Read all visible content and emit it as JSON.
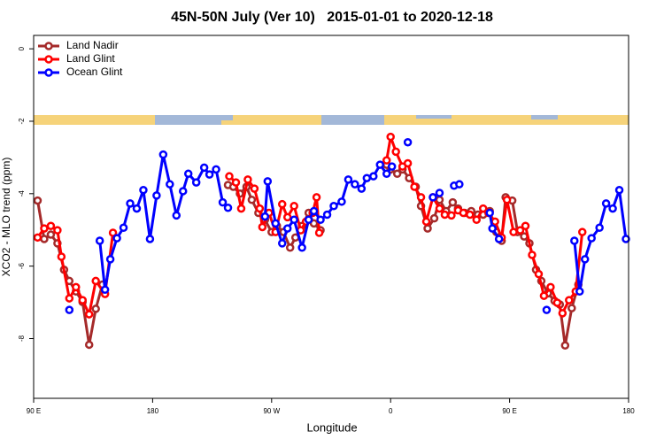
{
  "chart_data": {
    "type": "line",
    "title": "45N-50N July (Ver 10)   2015-01-01 to 2020-12-18",
    "xlabel": "Longitude",
    "ylabel": "XCO2 - MLO trend (ppm)",
    "xlim": [
      90,
      540
    ],
    "xticks": [
      {
        "value": 90,
        "label": "90 E"
      },
      {
        "value": 180,
        "label": "180"
      },
      {
        "value": 270,
        "label": "90 W"
      },
      {
        "value": 360,
        "label": "0"
      },
      {
        "value": 450,
        "label": "90 E"
      },
      {
        "value": 540,
        "label": "180"
      }
    ],
    "ylim": [
      -9.65,
      0.37
    ],
    "yticks": [
      -8,
      -6,
      -4,
      -2,
      0
    ],
    "legend": "upper left",
    "series": [
      {
        "name": "Land Nadir",
        "color": "#a52a2a",
        "x": [
          93,
          98,
          103,
          108,
          113,
          117,
          122,
          127,
          132,
          137,
          142,
          null,
          237,
          241,
          246,
          251,
          255,
          260,
          265,
          270,
          274,
          279,
          284,
          288,
          293,
          298,
          302,
          307,
          null,
          357,
          360,
          365,
          369,
          374,
          379,
          383,
          388,
          393,
          397,
          402,
          407,
          411,
          416,
          421,
          426,
          430,
          435,
          440,
          444,
          447,
          452,
          456,
          461,
          465,
          470,
          474,
          479,
          484,
          488,
          492,
          497,
          502
        ],
        "values": [
          -4.19,
          -5.25,
          -5.13,
          -5.37,
          -6.1,
          -6.41,
          -6.7,
          -6.99,
          -8.17,
          -7.18,
          -6.51,
          null,
          -3.76,
          -3.81,
          -4.0,
          -3.81,
          -4.17,
          -4.53,
          -4.72,
          -5.06,
          -4.89,
          -5.06,
          -5.49,
          -5.21,
          -4.89,
          -4.53,
          -4.82,
          -5.01,
          null,
          -3.2,
          -3.33,
          -3.45,
          -3.33,
          -3.57,
          -3.81,
          -4.34,
          -4.96,
          -4.68,
          -4.17,
          -4.48,
          -4.24,
          -4.41,
          -4.53,
          -4.48,
          -4.58,
          -4.58,
          -4.48,
          -5.06,
          -5.3,
          -4.1,
          -4.19,
          -5.06,
          -5.18,
          -5.37,
          -6.1,
          -6.41,
          -6.75,
          -6.96,
          -7.06,
          -8.19,
          -7.16,
          -6.51
        ]
      },
      {
        "name": "Land Glint",
        "color": "#ff0000",
        "x": [
          93,
          98,
          103,
          108,
          111,
          117,
          122,
          127,
          132,
          137,
          144,
          150,
          null,
          238,
          243,
          247,
          252,
          257,
          261,
          263,
          268,
          273,
          278,
          282,
          287,
          292,
          296,
          301,
          304,
          306,
          null,
          357,
          360,
          364,
          369,
          373,
          378,
          383,
          387,
          392,
          397,
          401,
          406,
          411,
          415,
          420,
          425,
          430,
          434,
          439,
          444,
          448,
          453,
          458,
          462,
          467,
          472,
          476,
          481,
          486,
          490,
          495,
          500,
          505
        ],
        "values": [
          -5.21,
          -4.96,
          -4.89,
          -5.01,
          -5.74,
          -6.89,
          -6.58,
          -6.94,
          -7.33,
          -6.41,
          -6.77,
          -5.08,
          null,
          -3.52,
          -3.69,
          -4.41,
          -3.61,
          -3.86,
          -4.41,
          -4.92,
          -4.53,
          -5.06,
          -4.29,
          -4.65,
          -4.34,
          -5.01,
          -4.77,
          -4.53,
          -4.1,
          -5.08,
          null,
          -3.08,
          -2.43,
          -2.84,
          -3.25,
          -3.16,
          -3.81,
          -4.1,
          -4.77,
          -4.1,
          -4.41,
          -4.58,
          -4.6,
          -4.46,
          -4.53,
          -4.58,
          -4.72,
          -4.41,
          -4.53,
          -4.77,
          -5.21,
          -4.17,
          -5.06,
          -5.01,
          -4.89,
          -5.69,
          -6.22,
          -6.82,
          -6.58,
          -7.01,
          -7.3,
          -6.94,
          -6.7,
          -5.06
        ]
      },
      {
        "name": "Ocean Glint",
        "color": "#0000ff",
        "x": [
          117,
          null,
          140,
          144,
          148,
          153,
          158,
          163,
          168,
          173,
          178,
          183,
          188,
          193,
          198,
          203,
          207,
          213,
          219,
          223,
          228,
          233,
          237,
          null,
          265,
          267,
          273,
          278,
          282,
          287,
          293,
          298,
          302,
          307,
          312,
          317,
          323,
          328,
          333,
          338,
          342,
          347,
          352,
          357,
          361,
          null,
          373,
          null,
          392,
          397,
          null,
          408,
          412,
          null,
          435,
          437,
          442,
          null,
          478,
          null,
          499,
          503,
          507,
          512,
          518,
          523,
          528,
          533,
          538
        ],
        "values": [
          -7.21,
          null,
          -5.3,
          -6.65,
          -5.81,
          -5.23,
          -4.94,
          -4.27,
          -4.41,
          -3.9,
          -5.25,
          -4.05,
          -2.92,
          -3.74,
          -4.6,
          -3.93,
          -3.45,
          -3.69,
          -3.28,
          -3.47,
          -3.33,
          -4.24,
          -4.39,
          null,
          -4.63,
          -3.66,
          -4.82,
          -5.37,
          -4.96,
          -4.72,
          -5.49,
          -4.72,
          -4.48,
          -4.72,
          -4.58,
          -4.34,
          -4.22,
          -3.61,
          -3.74,
          -3.86,
          -3.57,
          -3.52,
          -3.2,
          -3.45,
          -3.25,
          null,
          -2.58,
          null,
          -4.1,
          -3.98,
          null,
          -3.78,
          -3.74,
          null,
          -4.53,
          -4.96,
          -5.25,
          null,
          -7.21,
          null,
          -5.3,
          -6.7,
          -5.81,
          -5.23,
          -4.94,
          -4.27,
          -4.41,
          -3.9,
          -5.25
        ]
      }
    ]
  }
}
